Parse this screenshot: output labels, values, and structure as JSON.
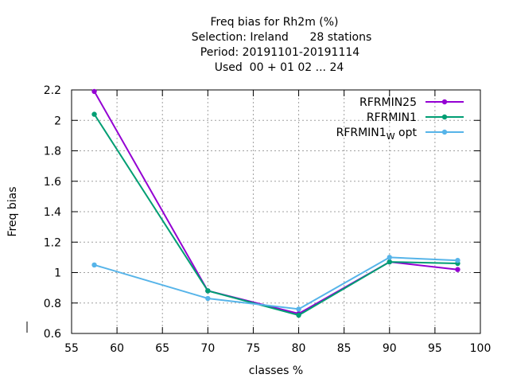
{
  "chart_data": {
    "type": "line",
    "title_lines": [
      "Freq bias  for Rh2m (%)",
      "Selection: Ireland      28 stations",
      "Period: 20191101-20191114",
      "Used  00 + 01 02 ... 24"
    ],
    "xlabel": "classes %",
    "ylabel": "Freq bias",
    "xlim": [
      55,
      100
    ],
    "ylim": [
      0.6,
      2.2
    ],
    "xticks": [
      55,
      60,
      65,
      70,
      75,
      80,
      85,
      90,
      95,
      100
    ],
    "xtick_labels": [
      "55",
      "60",
      "65",
      "70",
      "75",
      "80",
      "85",
      "90",
      "95",
      "100"
    ],
    "yticks": [
      0.6,
      0.8,
      1.0,
      1.2,
      1.4,
      1.6,
      1.8,
      2.0,
      2.2
    ],
    "ytick_labels": [
      "0.6",
      "0.8",
      "1",
      "1.2",
      "1.4",
      "1.6",
      "1.8",
      "2",
      "2.2"
    ],
    "grid": true,
    "legend_position": "top-right",
    "x": [
      57.5,
      70,
      80,
      90,
      97.5
    ],
    "series": [
      {
        "name": "RFRMIN25",
        "legend_main": "RFRMIN25",
        "legend_sub": "",
        "legend_tail": "",
        "color": "#9400d3",
        "values": [
          2.19,
          0.88,
          0.73,
          1.07,
          1.02
        ]
      },
      {
        "name": "RFRMIN1",
        "legend_main": "RFRMIN1",
        "legend_sub": "",
        "legend_tail": "",
        "color": "#009e73",
        "values": [
          2.04,
          0.88,
          0.72,
          1.07,
          1.06
        ]
      },
      {
        "name": "RFRMIN1_w opt",
        "legend_main": "RFRMIN1",
        "legend_sub": "W",
        "legend_tail": " opt",
        "color": "#56b4e9",
        "values": [
          1.05,
          0.83,
          0.76,
          1.1,
          1.08
        ]
      }
    ]
  }
}
